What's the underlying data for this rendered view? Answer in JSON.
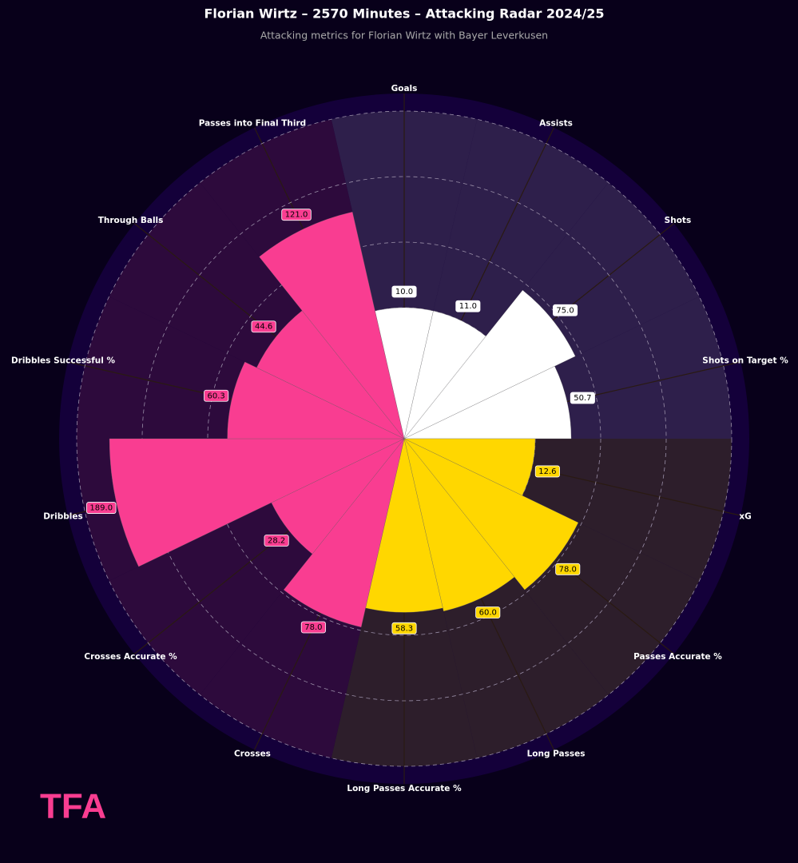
{
  "chart_data": {
    "type": "radial_bar",
    "title": "Florian Wirtz – 2570 Minutes – Attacking Radar 2024/25",
    "subtitle": "Attacking metrics for Florian Wirtz with Bayer Leverkusen",
    "categories": [
      "Goals",
      "Assists",
      "Shots",
      "Shots on Target %",
      "xG",
      "Passes Accurate %",
      "Long Passes",
      "Long Passes Accurate %",
      "Crosses",
      "Crosses Accurate %",
      "Dribbles",
      "Dribbles Successful %",
      "Through Balls",
      "Passes into Final Third"
    ],
    "values": [
      10,
      11,
      75,
      50.7,
      12.6,
      78,
      60,
      58.3,
      78,
      28.2,
      189,
      60.3,
      44.6,
      121
    ],
    "value_labels": [
      "10.0",
      "11.0",
      "75.0",
      "50.7",
      "12.6",
      "78.0",
      "60.0",
      "58.3",
      "78.0",
      "28.2",
      "189.0",
      "60.3",
      "44.6",
      "121.0"
    ],
    "percentiles": [
      40,
      40,
      58,
      51,
      40,
      59,
      54,
      53,
      59,
      45,
      90,
      54,
      50,
      71
    ],
    "colors": [
      "#ffffff",
      "#ffffff",
      "#ffffff",
      "#ffffff",
      "#ffd700",
      "#ffd700",
      "#ffd700",
      "#ffd700",
      "#f93d91",
      "#f93d91",
      "#f93d91",
      "#f93d91",
      "#f93d91",
      "#f93d91"
    ],
    "background_colors": [
      "#2e1f4b",
      "#2e1f4b",
      "#2e1f4b",
      "#2e1f4b",
      "#2d1e2b",
      "#2d1e2b",
      "#2d1e2b",
      "#2d1e2b",
      "#2d0a3c",
      "#2d0a3c",
      "#2d0a3c",
      "#2d0a3c",
      "#2d0a3c",
      "#2d0a3c"
    ],
    "rlim": [
      0,
      100
    ],
    "rticks": [
      20,
      40,
      60,
      80,
      100
    ],
    "grid": true
  },
  "logo": "TFA"
}
